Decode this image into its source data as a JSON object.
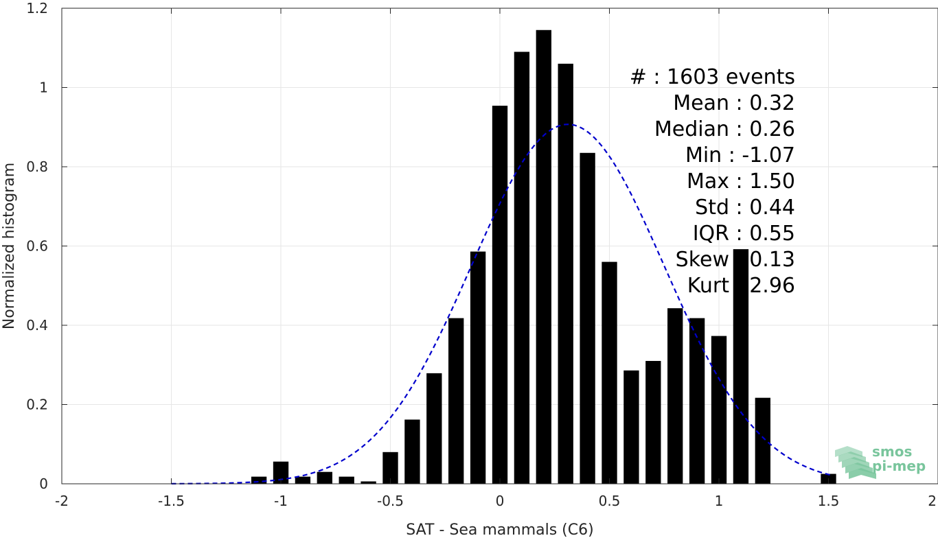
{
  "chart_data": {
    "type": "bar",
    "title": "",
    "xlabel": "SAT - Sea mammals (C6)",
    "ylabel": "Normalized histogram",
    "xlim": [
      -2,
      2
    ],
    "ylim": [
      0,
      1.2
    ],
    "xticks": [
      -2,
      -1.5,
      -1,
      -0.5,
      0,
      0.5,
      1,
      1.5,
      2
    ],
    "xtick_labels": [
      "-2",
      "-1.5",
      "-1",
      "-0.5",
      "0",
      "0.5",
      "1",
      "1.5",
      "2"
    ],
    "yticks": [
      0,
      0.2,
      0.4,
      0.6,
      0.8,
      1,
      1.2
    ],
    "ytick_labels": [
      "0",
      "0.2",
      "0.4",
      "0.6",
      "0.8",
      "1",
      "1.2"
    ],
    "grid": true,
    "bar_width": 0.07,
    "bars": {
      "x": [
        -1.1,
        -1.0,
        -0.9,
        -0.8,
        -0.7,
        -0.6,
        -0.5,
        -0.4,
        -0.3,
        -0.2,
        -0.1,
        0.0,
        0.1,
        0.2,
        0.3,
        0.4,
        0.5,
        0.6,
        0.7,
        0.8,
        0.9,
        1.0,
        1.1,
        1.2,
        1.5
      ],
      "values": [
        0.018,
        0.056,
        0.018,
        0.03,
        0.018,
        0.006,
        0.08,
        0.162,
        0.279,
        0.418,
        0.586,
        0.954,
        1.09,
        1.145,
        1.06,
        0.835,
        0.56,
        0.286,
        0.31,
        0.443,
        0.418,
        0.373,
        0.592,
        0.217,
        0.025
      ],
      "color": "#000000"
    },
    "fit_curve": {
      "style": "dashed",
      "color": "#0000cc",
      "mean": 0.31,
      "std": 0.44,
      "peak": 0.907,
      "x_range": [
        -1.5,
        1.52
      ]
    },
    "stats_box": {
      "placement": "top-right",
      "lines": [
        "#  : 1603 events",
        "Mean : 0.32",
        "Median : 0.26",
        "Min : -1.07",
        "Max : 1.50",
        "Std : 0.44",
        "IQR : 0.55",
        "Skew : 0.13",
        "Kurt : 2.96"
      ]
    },
    "logo": {
      "line1": "smos",
      "line2": "pi-mep",
      "color": "#79c59c"
    }
  }
}
